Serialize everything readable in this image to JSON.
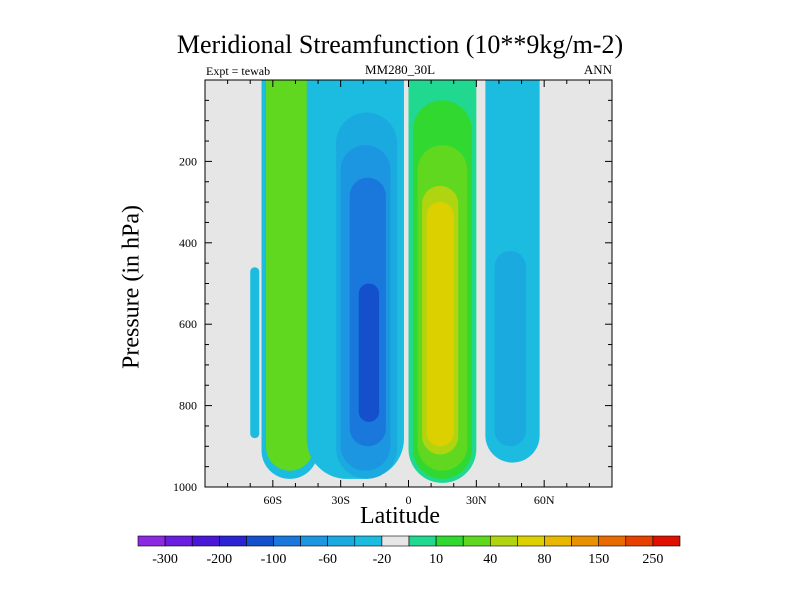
{
  "title": "Meridional Streamfunction (10**9kg/m-2)",
  "subtitle_left": "Expt = tewab",
  "subtitle_center": "MM280_30L",
  "subtitle_right": "ANN",
  "xlabel": "Latitude",
  "ylabel": "Pressure (in hPa)",
  "colors": {
    "background": "#e6e6e6",
    "levels": [
      "#8a2be2",
      "#6a1ee0",
      "#4a17d8",
      "#2d23d2",
      "#1450cc",
      "#1a78dc",
      "#1c96e0",
      "#1aaae0",
      "#1cbce0",
      "#e6e6e6",
      "#20d890",
      "#30d830",
      "#60d820",
      "#b0d410",
      "#dcd000",
      "#e8b800",
      "#e89000",
      "#e86a00",
      "#e84000",
      "#e01000"
    ]
  },
  "chart_data": {
    "type": "heatmap",
    "x_ticks": [
      "60S",
      "30S",
      "0",
      "30N",
      "60N"
    ],
    "x_tick_values": [
      -60,
      -30,
      0,
      30,
      60
    ],
    "y_ticks": [
      "200",
      "400",
      "600",
      "800",
      "1000"
    ],
    "y_tick_values": [
      200,
      400,
      600,
      800,
      1000
    ],
    "xlim": [
      -90,
      90
    ],
    "ylim": [
      1000,
      0
    ],
    "colorbar_labels": [
      "-300",
      "-200",
      "-100",
      "-60",
      "-20",
      "10",
      "40",
      "80",
      "150",
      "250"
    ],
    "cells": [
      {
        "lat": [
          -70,
          -66
        ],
        "p": [
          460,
          880
        ],
        "color": "#1cbce0"
      },
      {
        "lat": [
          -65,
          -40
        ],
        "p": [
          0,
          980
        ],
        "color": "#1cbce0"
      },
      {
        "lat": [
          -63,
          -42
        ],
        "p": [
          0,
          960
        ],
        "color": "#60d820"
      },
      {
        "lat": [
          -45,
          -2
        ],
        "p": [
          0,
          980
        ],
        "color": "#1cbce0"
      },
      {
        "lat": [
          -32,
          -5
        ],
        "p": [
          80,
          980
        ],
        "color": "#1aaae0"
      },
      {
        "lat": [
          -30,
          -8
        ],
        "p": [
          160,
          960
        ],
        "color": "#1c96e0"
      },
      {
        "lat": [
          -26,
          -10
        ],
        "p": [
          240,
          900
        ],
        "color": "#1a78dc"
      },
      {
        "lat": [
          -22,
          -13
        ],
        "p": [
          500,
          840
        ],
        "color": "#1450cc"
      },
      {
        "lat": [
          0,
          30
        ],
        "p": [
          0,
          990
        ],
        "color": "#20d890"
      },
      {
        "lat": [
          2,
          28
        ],
        "p": [
          50,
          980
        ],
        "color": "#30d830"
      },
      {
        "lat": [
          4,
          26
        ],
        "p": [
          160,
          960
        ],
        "color": "#60d820"
      },
      {
        "lat": [
          6,
          22
        ],
        "p": [
          260,
          920
        ],
        "color": "#b0d410"
      },
      {
        "lat": [
          8,
          20
        ],
        "p": [
          300,
          900
        ],
        "color": "#dcd000"
      },
      {
        "lat": [
          34,
          58
        ],
        "p": [
          0,
          940
        ],
        "color": "#1cbce0"
      },
      {
        "lat": [
          38,
          52
        ],
        "p": [
          420,
          900
        ],
        "color": "#1aaae0"
      }
    ]
  }
}
